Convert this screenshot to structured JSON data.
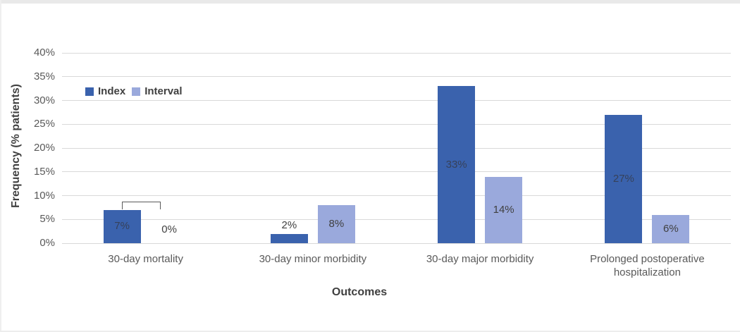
{
  "chart_data": {
    "type": "bar",
    "title": "",
    "xlabel": "Outcomes",
    "ylabel": "Frequency (% patients)",
    "categories": [
      "30-day mortality",
      "30-day minor morbidity",
      "30-day major morbidity",
      "Prolonged postoperative hospitalization"
    ],
    "series": [
      {
        "name": "Index",
        "color": "#3a62ad",
        "label_color": "#36415a",
        "values": [
          7,
          2,
          33,
          27
        ],
        "labels": [
          "7%",
          "2%",
          "33%",
          "27%"
        ]
      },
      {
        "name": "Interval",
        "color": "#9aa9dc",
        "label_color": "#404040",
        "values": [
          0,
          8,
          14,
          6
        ],
        "labels": [
          "0%",
          "8%",
          "14%",
          "6%"
        ]
      }
    ],
    "ylim": [
      0,
      40
    ],
    "ytick_step": 5,
    "ytick_labels": [
      "0%",
      "5%",
      "10%",
      "15%",
      "20%",
      "25%",
      "30%",
      "35%",
      "40%"
    ],
    "grid": true,
    "gridline_color": "#d9d9d9",
    "legend_position": "upper-left-inside",
    "annotations": [
      {
        "type": "bracket",
        "category": "30-day mortality",
        "category_index": 0,
        "between": [
          "Index",
          "Interval"
        ]
      }
    ]
  }
}
